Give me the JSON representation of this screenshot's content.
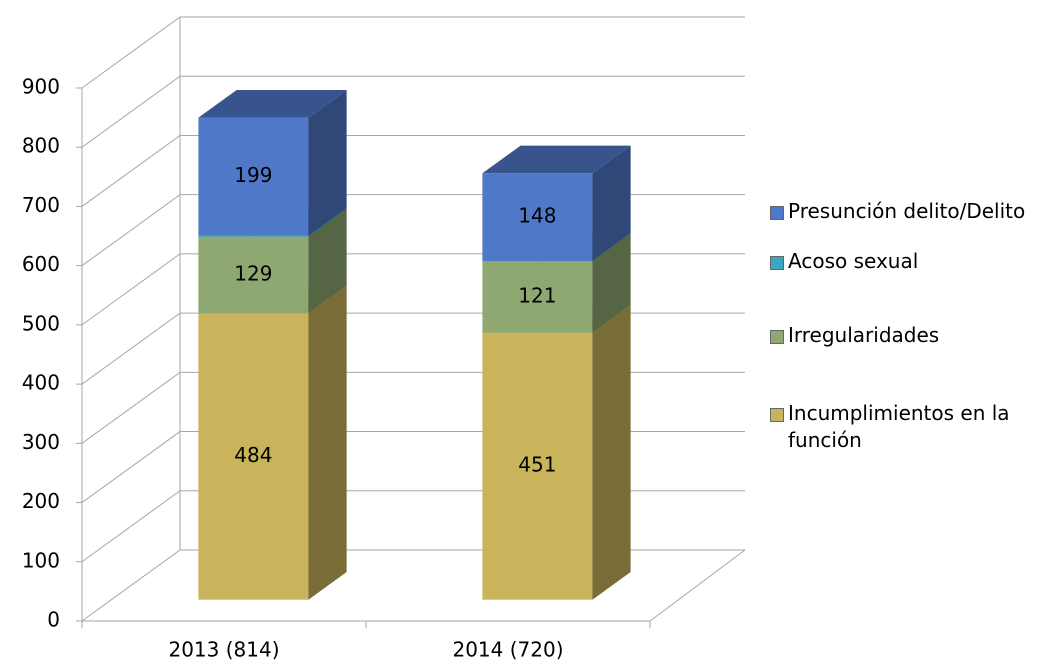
{
  "chart_data": {
    "type": "bar",
    "stacked": true,
    "three_d": true,
    "categories": [
      "2013 (814)",
      "2014 (720)"
    ],
    "series": [
      {
        "name": "Incumplimientos en la función",
        "color": "#c9b45c",
        "values": [
          484,
          451
        ]
      },
      {
        "name": "Irregularidades",
        "color": "#8fa872",
        "values": [
          129,
          121
        ]
      },
      {
        "name": "Acoso sexual",
        "color": "#3aa6c4",
        "values": [
          2,
          0
        ]
      },
      {
        "name": "Presunción delito/Delito",
        "color": "#4f78c8",
        "values": [
          199,
          148
        ]
      }
    ],
    "ylim": [
      0,
      900
    ],
    "yticks": [
      0,
      100,
      200,
      300,
      400,
      500,
      600,
      700,
      800,
      900
    ],
    "grid": true,
    "legend": "right"
  }
}
